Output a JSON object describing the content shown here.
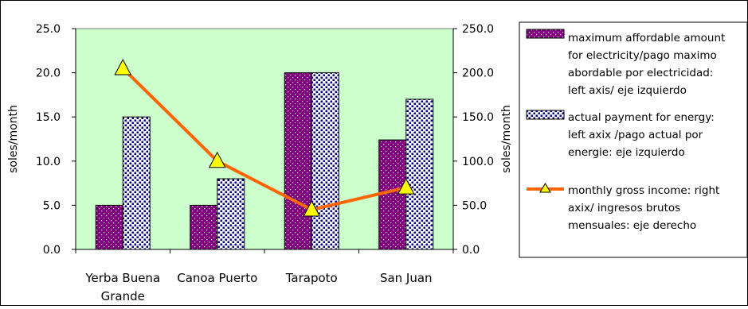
{
  "chart_data": {
    "type": "bar",
    "categories": [
      [
        "Yerba Buena",
        "Grande"
      ],
      [
        "Canoa Puerto"
      ],
      [
        "Tarapoto"
      ],
      [
        "San Juan"
      ]
    ],
    "series": [
      {
        "name": "maximum affordable amount for electricity/pago maximo abordable por electricidad: left axis/ eje izquierdo",
        "type": "bar",
        "axis": "left",
        "values": [
          5.0,
          5.0,
          20.0,
          12.4
        ],
        "color": "#800080",
        "pattern": "dots-on-purple"
      },
      {
        "name": "actual payment for energy: left axix /pago actual por energie: eje izquierdo",
        "type": "bar",
        "axis": "left",
        "values": [
          15.0,
          8.0,
          20.0,
          17.0
        ],
        "color": "#000080",
        "pattern": "dots-on-white"
      },
      {
        "name": "monthly gross income: right axix/ ingresos brutos mensuales: eje derecho",
        "type": "line",
        "axis": "right",
        "values": [
          205.0,
          100.0,
          45.0,
          70.0
        ],
        "color": "#ff6600",
        "marker": "triangle",
        "marker_color": "#ffff00"
      }
    ],
    "left_axis": {
      "label": "soles/month",
      "range": [
        0,
        25
      ],
      "ticks": [
        "0.0",
        "5.0",
        "10.0",
        "15.0",
        "20.0",
        "25.0"
      ]
    },
    "right_axis": {
      "label": "soles/month",
      "range": [
        0,
        250
      ],
      "ticks": [
        "0.0",
        "50.0",
        "100.0",
        "150.0",
        "200.0",
        "250.0"
      ]
    },
    "legend": {
      "placement": "right",
      "entries": [
        [
          "maximum affordable amount",
          "for electricity/pago maximo",
          "abordable por electricidad:",
          "left axis/ eje izquierdo"
        ],
        [
          "actual payment for energy:",
          "left axix /pago actual por",
          "energie:  eje izquierdo"
        ],
        [
          "monthly gross income: right",
          "axix/ ingresos brutos",
          "mensuales: eje derecho"
        ]
      ]
    },
    "plot_background": "#ccffcc",
    "grid": false
  }
}
